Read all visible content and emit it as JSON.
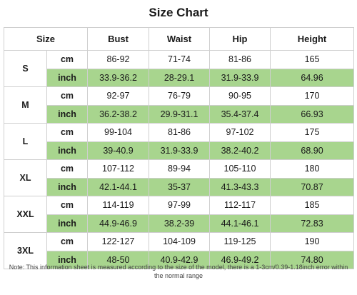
{
  "title": "Size Chart",
  "headers": {
    "size": "Size",
    "bust": "Bust",
    "waist": "Waist",
    "hip": "Hip",
    "height": "Height"
  },
  "rows": [
    {
      "size": "S",
      "cm": {
        "unit": "cm",
        "bust": "86-92",
        "waist": "71-74",
        "hip": "81-86",
        "height": "165"
      },
      "inch": {
        "unit": "inch",
        "bust": "33.9-36.2",
        "waist": "28-29.1",
        "hip": "31.9-33.9",
        "height": "64.96"
      }
    },
    {
      "size": "M",
      "cm": {
        "unit": "cm",
        "bust": "92-97",
        "waist": "76-79",
        "hip": "90-95",
        "height": "170"
      },
      "inch": {
        "unit": "inch",
        "bust": "36.2-38.2",
        "waist": "29.9-31.1",
        "hip": "35.4-37.4",
        "height": "66.93"
      }
    },
    {
      "size": "L",
      "cm": {
        "unit": "cm",
        "bust": "99-104",
        "waist": "81-86",
        "hip": "97-102",
        "height": "175"
      },
      "inch": {
        "unit": "inch",
        "bust": "39-40.9",
        "waist": "31.9-33.9",
        "hip": "38.2-40.2",
        "height": "68.90"
      }
    },
    {
      "size": "XL",
      "cm": {
        "unit": "cm",
        "bust": "107-112",
        "waist": "89-94",
        "hip": "105-110",
        "height": "180"
      },
      "inch": {
        "unit": "inch",
        "bust": "42.1-44.1",
        "waist": "35-37",
        "hip": "41.3-43.3",
        "height": "70.87"
      }
    },
    {
      "size": "XXL",
      "cm": {
        "unit": "cm",
        "bust": "114-119",
        "waist": "97-99",
        "hip": "112-117",
        "height": "185"
      },
      "inch": {
        "unit": "inch",
        "bust": "44.9-46.9",
        "waist": "38.2-39",
        "hip": "44.1-46.1",
        "height": "72.83"
      }
    },
    {
      "size": "3XL",
      "cm": {
        "unit": "cm",
        "bust": "122-127",
        "waist": "104-109",
        "hip": "119-125",
        "height": "190"
      },
      "inch": {
        "unit": "inch",
        "bust": "48-50",
        "waist": "40.9-42.9",
        "hip": "46.9-49.2",
        "height": "74.80"
      }
    }
  ],
  "note": "Note: This information sheet is measured according to the size of the model, there is a 1-3cm/0.39-1.18inch error within the normal range",
  "colors": {
    "inch_row_fill": "#a8d58e",
    "border": "#cfcfcf"
  }
}
